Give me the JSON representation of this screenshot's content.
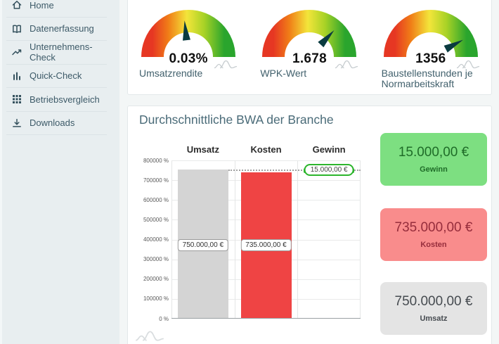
{
  "sidebar": {
    "items": [
      {
        "label": "Home",
        "icon": "home"
      },
      {
        "label": "Datenerfassung",
        "icon": "book"
      },
      {
        "label": "Unternehmens-Check",
        "icon": "trend"
      },
      {
        "label": "Quick-Check",
        "icon": "bars"
      },
      {
        "label": "Betriebsvergleich",
        "icon": "grid"
      },
      {
        "label": "Downloads",
        "icon": "download"
      }
    ]
  },
  "gauges": [
    {
      "value": "0.03%",
      "label": "Umsatzrendite",
      "needle_angle_deg": -6
    },
    {
      "value": "1.678",
      "label": "WPK-Wert",
      "needle_angle_deg": 43
    },
    {
      "value": "1356",
      "label": "Baustellenstunden je Normarbeitskraft",
      "needle_angle_deg": 62
    }
  ],
  "gauge_style": {
    "gradient_stops": [
      "#e63723",
      "#f07d17",
      "#f3e53a",
      "#a8d226",
      "#2aa52d"
    ],
    "needle_color": "#0a3b40"
  },
  "bwa": {
    "title": "Durchschnittliche BWA der Branche",
    "chart_data": {
      "type": "bar",
      "categories": [
        "Umsatz",
        "Kosten",
        "Gewinn"
      ],
      "values": [
        750000,
        735000,
        15000
      ],
      "value_labels": [
        "750.000,00 €",
        "735.000,00 €",
        "15.000,00 €"
      ],
      "bar_colors": [
        "#d4d4d4",
        "#ef4444",
        "#2cb52c"
      ],
      "marker_level": 750000,
      "marker_note": "Gewinn shown as green level marker at Kosten+Gewinn, linked by dotted line",
      "ylim": [
        0,
        800000
      ],
      "yticks": [
        0,
        100000,
        200000,
        300000,
        400000,
        500000,
        600000,
        700000,
        800000
      ],
      "ytick_labels": [
        "0 %",
        "100000 %",
        "200000 %",
        "300000 %",
        "400000 %",
        "500000 %",
        "600000 %",
        "700000 %",
        "800000 %"
      ],
      "grid": true,
      "legend": false
    },
    "cards": [
      {
        "value": "15.000,00 €",
        "label": "Gewinn",
        "bg": "#7ddf81",
        "fg": "#1f6c28"
      },
      {
        "value": "735.000,00 €",
        "label": "Kosten",
        "bg": "#f98c8c",
        "fg": "#962d3c"
      },
      {
        "value": "750.000,00 €",
        "label": "Umsatz",
        "bg": "#e4e4e4",
        "fg": "#464b50"
      }
    ]
  }
}
